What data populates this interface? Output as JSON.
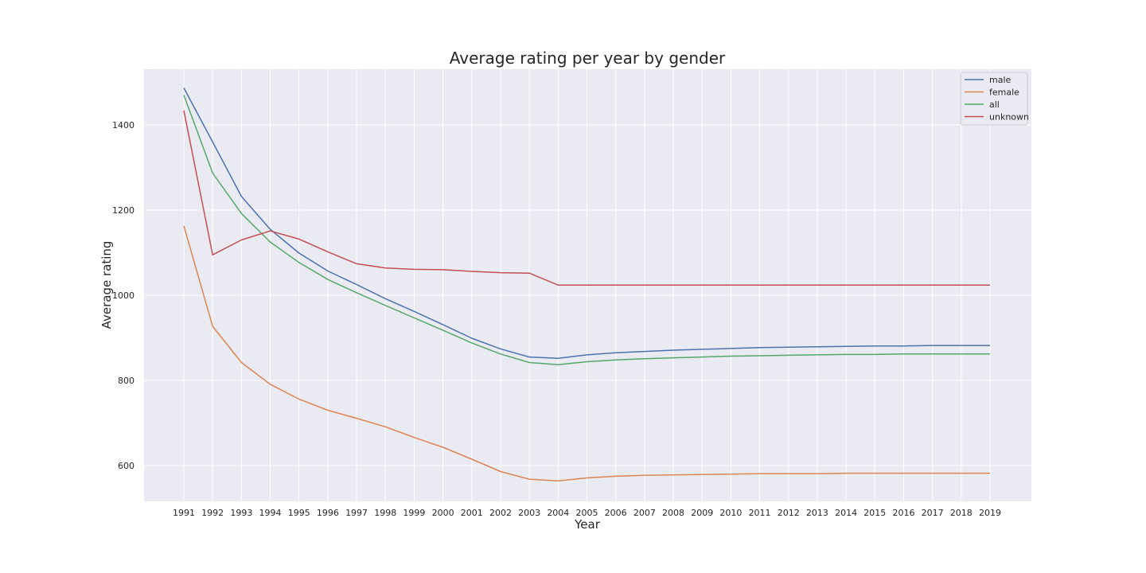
{
  "chart_data": {
    "type": "line",
    "title": "Average rating per year by gender",
    "xlabel": "Year",
    "ylabel": "Average rating",
    "ylim": [
      520,
      1520
    ],
    "yticks": [
      600,
      800,
      1000,
      1200,
      1400
    ],
    "grid": true,
    "legend_position": "top-right",
    "categories": [
      "1991",
      "1992",
      "1993",
      "1994",
      "1995",
      "1996",
      "1997",
      "1998",
      "1999",
      "2000",
      "2001",
      "2002",
      "2003",
      "2004",
      "2005",
      "2006",
      "2007",
      "2008",
      "2009",
      "2010",
      "2011",
      "2012",
      "2013",
      "2014",
      "2015",
      "2016",
      "2017",
      "2018",
      "2019"
    ],
    "series": [
      {
        "name": "male",
        "color": "#4c72b0",
        "values": [
          1487,
          1360,
          1232,
          1155,
          1099,
          1057,
          1025,
          992,
          962,
          931,
          899,
          874,
          855,
          852,
          860,
          865,
          868,
          871,
          873,
          875,
          877,
          878,
          879,
          880,
          881,
          881,
          882,
          882,
          882
        ]
      },
      {
        "name": "female",
        "color": "#dd8452",
        "values": [
          1163,
          927,
          842,
          791,
          756,
          730,
          711,
          691,
          666,
          643,
          615,
          586,
          568,
          564,
          571,
          575,
          577,
          578,
          579,
          580,
          581,
          581,
          581,
          582,
          582,
          582,
          582,
          582,
          582
        ]
      },
      {
        "name": "all",
        "color": "#55a868",
        "values": [
          1470,
          1287,
          1192,
          1125,
          1077,
          1037,
          1006,
          976,
          947,
          918,
          888,
          862,
          842,
          837,
          844,
          848,
          851,
          853,
          855,
          857,
          858,
          859,
          860,
          861,
          861,
          862,
          862,
          862,
          862
        ]
      },
      {
        "name": "unknown",
        "color": "#c44e52",
        "values": [
          1434,
          1095,
          1130,
          1151,
          1132,
          1102,
          1074,
          1064,
          1061,
          1060,
          1056,
          1053,
          1052,
          1024,
          1024,
          1024,
          1024,
          1024,
          1024,
          1024,
          1024,
          1024,
          1024,
          1024,
          1024,
          1024,
          1024,
          1024,
          1024
        ]
      }
    ]
  }
}
